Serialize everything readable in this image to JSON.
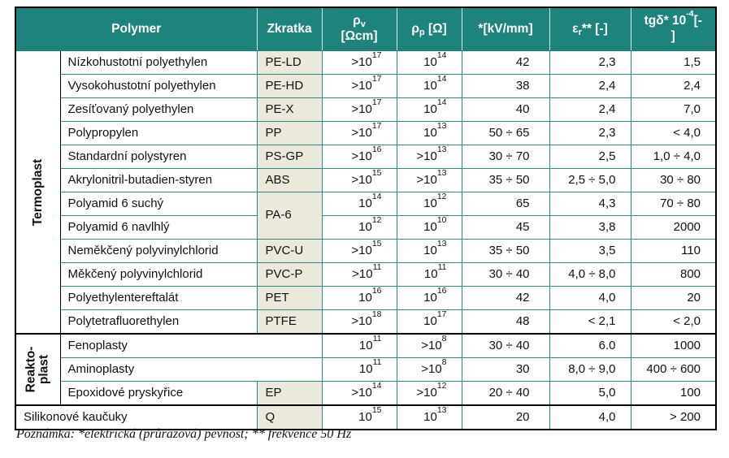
{
  "colors": {
    "header_teal": "#1f837d",
    "grid_teal": "#2a8a84",
    "abbr_beige": "#eae9dc",
    "outer_border": "#000000"
  },
  "table": {
    "header": {
      "polymer": "Polymer",
      "zkratka": "Zkratka",
      "rho_v_lines": [
        "ρ_v",
        "[Ωcm]"
      ],
      "rho_p": "ρ_p [Ω]",
      "strength": "*[kV/mm]",
      "eps": "ε_r** [-]",
      "tgd_lines": [
        "tgδ* 10^-4[-",
        "]"
      ]
    },
    "groups": [
      {
        "label": "Termoplast",
        "rows": [
          {
            "name": "Nízkohustotní polyethylen",
            "abbr": "PE-LD",
            "rho_v": ">10^17",
            "rho_p": "10^14",
            "strength": "42",
            "eps": "2,3",
            "tgd": "1,5"
          },
          {
            "name": "Vysokohustotní polyethylen",
            "abbr": "PE-HD",
            "rho_v": ">10^17",
            "rho_p": "10^14",
            "strength": "38",
            "eps": "2,4",
            "tgd": "2,4"
          },
          {
            "name": "Zesíťovaný polyethylen",
            "abbr": "PE-X",
            "rho_v": ">10^17",
            "rho_p": "10^14",
            "strength": "40",
            "eps": "2,4",
            "tgd": "7,0"
          },
          {
            "name": "Polypropylen",
            "abbr": "PP",
            "rho_v": ">10^17",
            "rho_p": "10^13",
            "strength": "50 ÷ 65",
            "eps": "2,3",
            "tgd": "< 4,0"
          },
          {
            "name": "Standardní polystyren",
            "abbr": "PS-GP",
            "rho_v": ">10^16",
            "rho_p": ">10^13",
            "strength": "30 ÷ 70",
            "eps": "2,5",
            "tgd": "1,0 ÷ 4,0"
          },
          {
            "name": "Akrylonitril-butadien-styren",
            "abbr": "ABS",
            "rho_v": ">10^15",
            "rho_p": ">10^13",
            "strength": "35 ÷ 50",
            "eps": "2,5 ÷ 5,0",
            "tgd": "30 ÷ 80"
          },
          {
            "name": "Polyamid 6 suchý",
            "abbr": "PA-6",
            "abbr_rowspan": 2,
            "rho_v": "10^14",
            "rho_p": "10^12",
            "strength": "65",
            "eps": "4,3",
            "tgd": "70 ÷ 80"
          },
          {
            "name": "Polyamid 6 navlhlý",
            "abbr_merged": true,
            "rho_v": "10^12",
            "rho_p": "10^10",
            "strength": "45",
            "eps": "3,8",
            "tgd": "2000"
          },
          {
            "name": "Neměkčený polyvinylchlorid",
            "abbr": "PVC-U",
            "rho_v": ">10^15",
            "rho_p": "10^13",
            "strength": "35 ÷ 50",
            "eps": "3,5",
            "tgd": "110"
          },
          {
            "name": "Měkčený polyvinylchlorid",
            "abbr": "PVC-P",
            "rho_v": ">10^11",
            "rho_p": "10^11",
            "strength": "30 ÷ 40",
            "eps": "4,0 ÷ 8,0",
            "tgd": "800"
          },
          {
            "name": "Polyethylentereftalát",
            "abbr": "PET",
            "rho_v": "10^16",
            "rho_p": "10^16",
            "strength": "42",
            "eps": "4,0",
            "tgd": "20"
          },
          {
            "name": "Polytetrafluorethylen",
            "abbr": "PTFE",
            "rho_v": ">10^18",
            "rho_p": "10^17",
            "strength": "48",
            "eps": "< 2,1",
            "tgd": "< 2,0"
          }
        ]
      },
      {
        "label": "Reakto-\nplast",
        "rows": [
          {
            "name": "Fenoplasty",
            "name_colspan": 2,
            "rho_v": "10^11",
            "rho_p": ">10^8",
            "strength": "30 ÷ 40",
            "eps": "6.0",
            "tgd": "1000"
          },
          {
            "name": "Aminoplasty",
            "name_colspan": 2,
            "rho_v": "10^11",
            "rho_p": ">10^8",
            "strength": "30",
            "eps": "8,0 ÷ 9,0",
            "tgd": "400 ÷ 600"
          },
          {
            "name": "Epoxidové pryskyřice",
            "abbr": "EP",
            "rho_v": ">10^14",
            "rho_p": ">10^12",
            "strength": "20 ÷ 40",
            "eps": "5,0",
            "tgd": "100"
          }
        ]
      },
      {
        "label": null,
        "rows": [
          {
            "name": "Silikonové kaučuky",
            "abbr": "Q",
            "name_spans_category": true,
            "rho_v": "10^15",
            "rho_p": "10^13",
            "strength": "20",
            "eps": "4,0",
            "tgd": "> 200"
          }
        ]
      }
    ]
  },
  "note": "Poznámka: *elektrická (průrazová) pevnost; ** frekvence 50 Hz"
}
